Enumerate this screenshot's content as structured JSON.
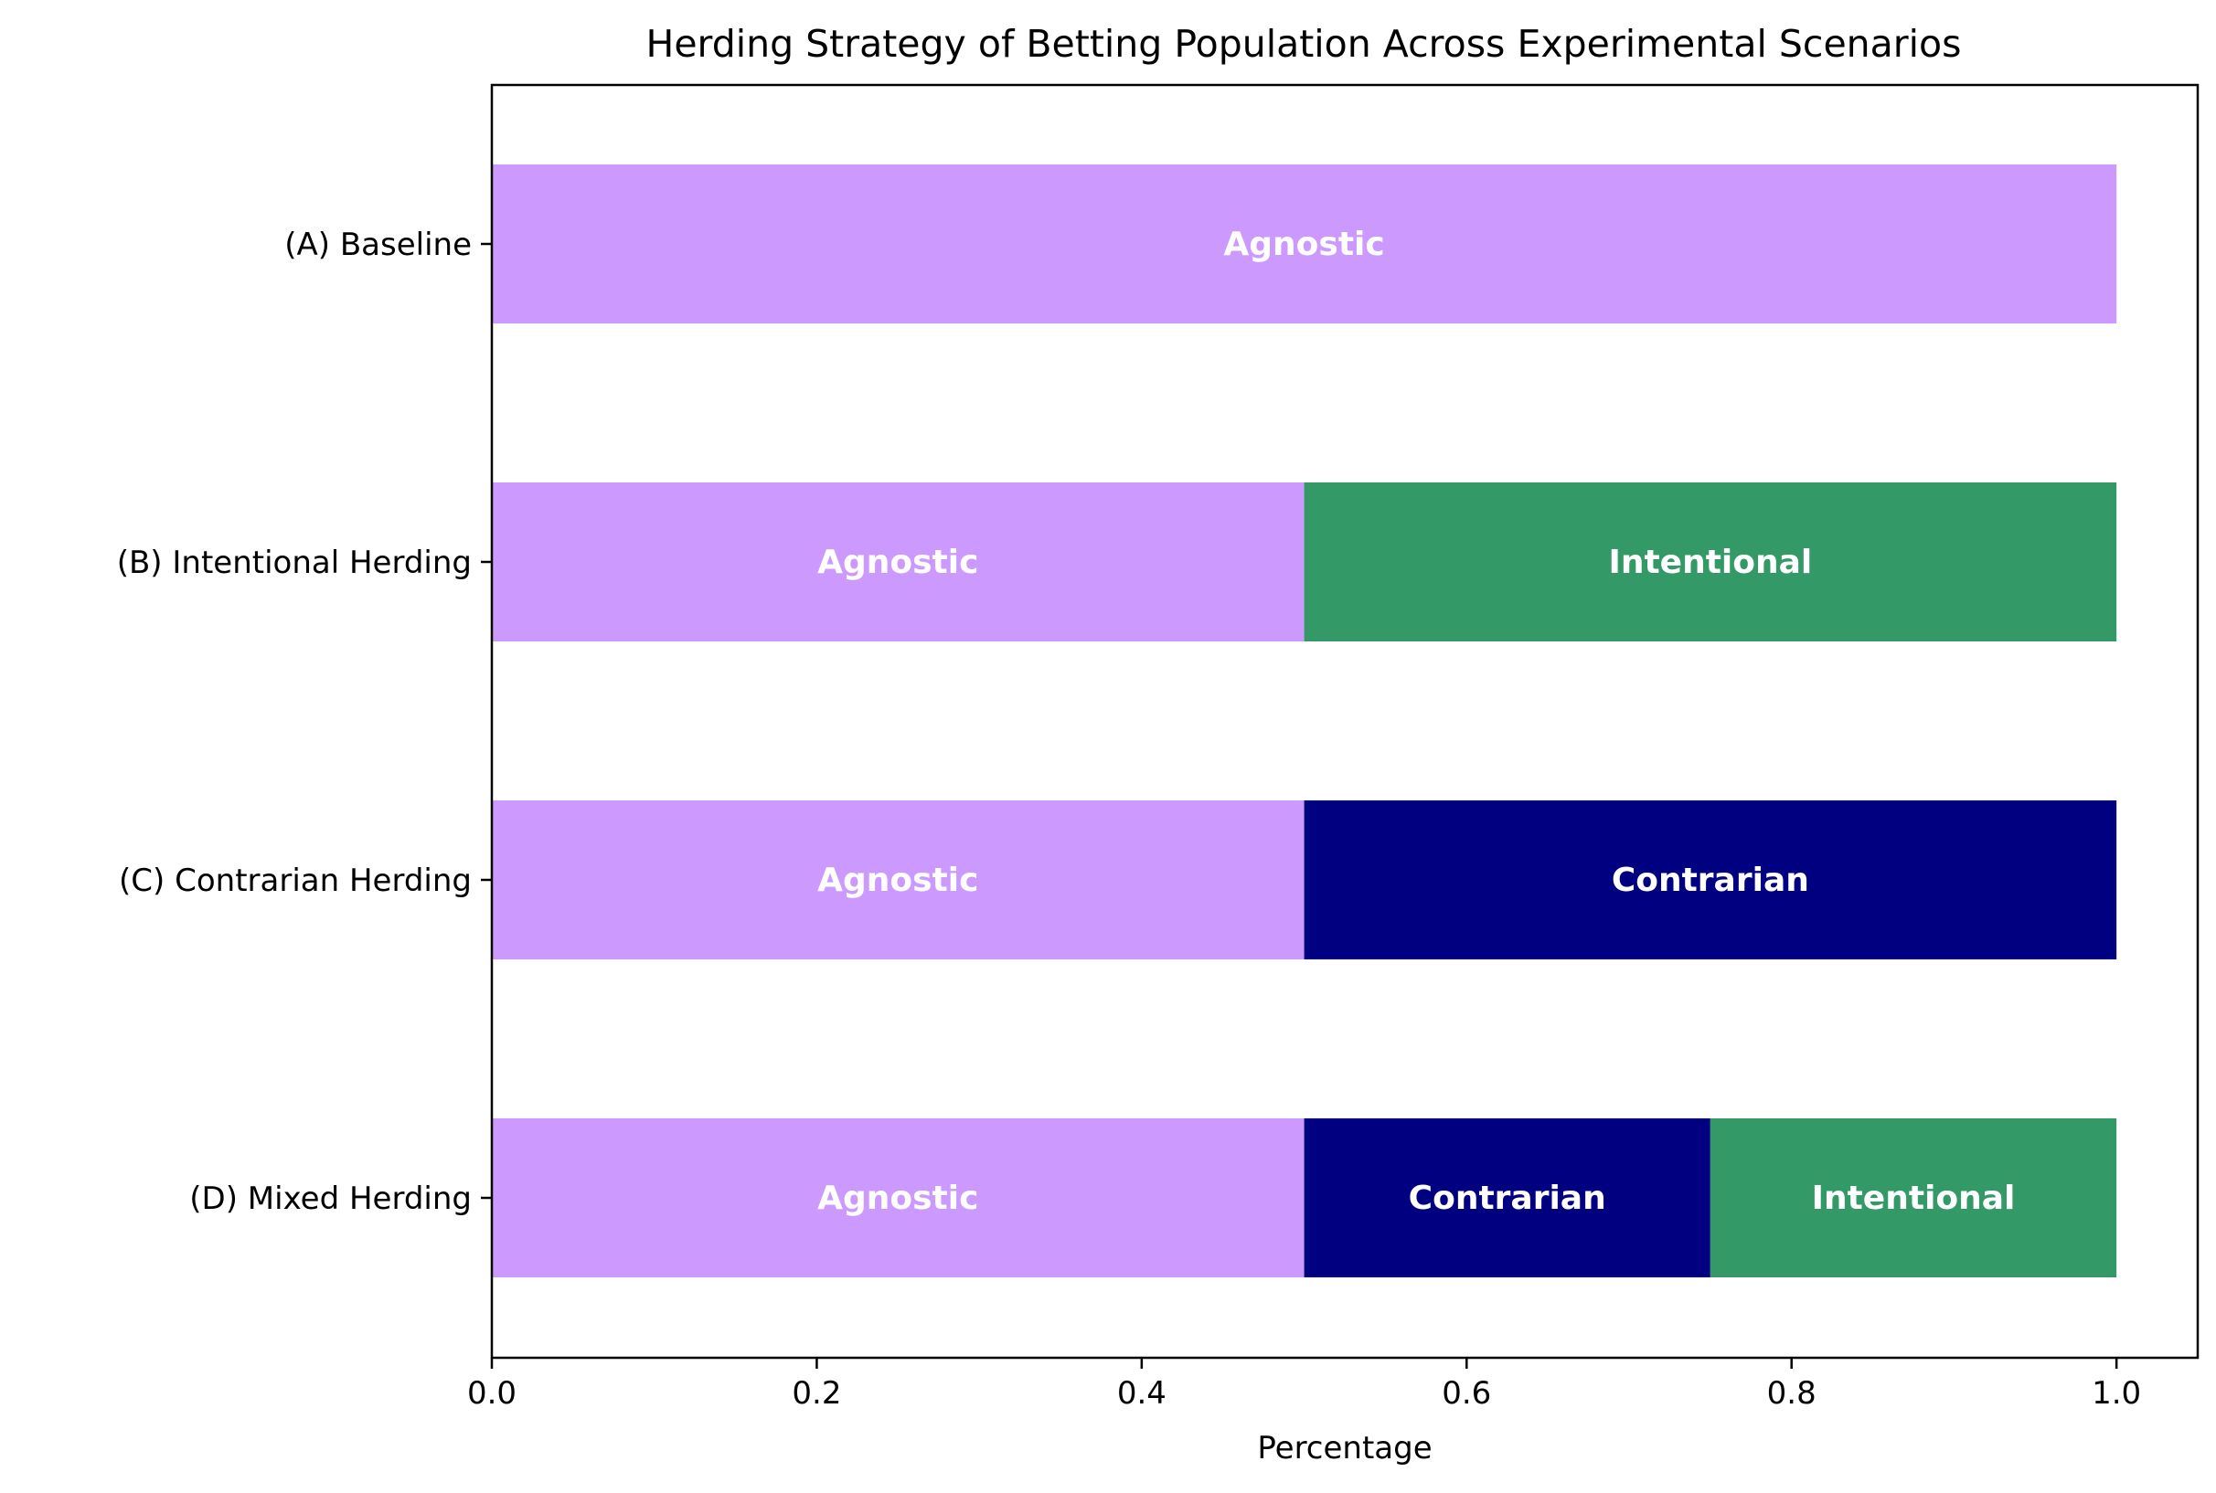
{
  "chart_data": {
    "type": "bar",
    "orientation": "horizontal",
    "stacked": true,
    "title": "Herding Strategy of Betting Population Across Experimental Scenarios",
    "xlabel": "Percentage",
    "ylabel": "",
    "xlim": [
      0.0,
      1.05
    ],
    "xticks": [
      0.0,
      0.2,
      0.4,
      0.6,
      0.8,
      1.0
    ],
    "xtick_labels": [
      "0.0",
      "0.2",
      "0.4",
      "0.6",
      "0.8",
      "1.0"
    ],
    "grid": false,
    "categories": [
      "(A) Baseline",
      "(B) Intentional Herding",
      "(C) Contrarian Herding",
      "(D) Mixed Herding"
    ],
    "segment_labels": {
      "agnostic": "Agnostic",
      "contrarian": "Contrarian",
      "intentional": "Intentional"
    },
    "colors": {
      "agnostic": "#cc99ff",
      "contrarian": "#000080",
      "intentional": "#339966"
    },
    "bars": [
      {
        "category": "(A) Baseline",
        "segments": [
          {
            "key": "agnostic",
            "value": 1.0
          }
        ]
      },
      {
        "category": "(B) Intentional Herding",
        "segments": [
          {
            "key": "agnostic",
            "value": 0.5
          },
          {
            "key": "intentional",
            "value": 0.5
          }
        ]
      },
      {
        "category": "(C) Contrarian Herding",
        "segments": [
          {
            "key": "agnostic",
            "value": 0.5
          },
          {
            "key": "contrarian",
            "value": 0.5
          }
        ]
      },
      {
        "category": "(D) Mixed Herding",
        "segments": [
          {
            "key": "agnostic",
            "value": 0.5
          },
          {
            "key": "contrarian",
            "value": 0.25
          },
          {
            "key": "intentional",
            "value": 0.25
          }
        ]
      }
    ]
  }
}
